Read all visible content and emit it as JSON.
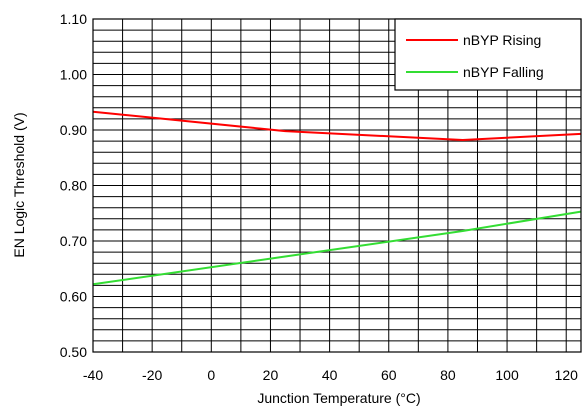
{
  "chart_data": {
    "type": "line",
    "title": "",
    "xlabel": "Junction Temperature (°C)",
    "ylabel": "EN Logic Threshold (V)",
    "xlim": [
      -40,
      125
    ],
    "ylim": [
      0.5,
      1.1
    ],
    "x_ticks": [
      -40,
      -20,
      0,
      20,
      40,
      60,
      80,
      100,
      120
    ],
    "x_tick_labels": [
      "-40",
      "-20",
      "0",
      "20",
      "40",
      "60",
      "80",
      "100",
      "120"
    ],
    "y_ticks": [
      0.5,
      0.6,
      0.7,
      0.8,
      0.9,
      1.0,
      1.1
    ],
    "y_tick_labels": [
      "0.50",
      "0.60",
      "0.70",
      "0.80",
      "0.90",
      "1.00",
      "1.10"
    ],
    "grid": true,
    "legend_position": "top-right",
    "series": [
      {
        "name": "nBYP Rising",
        "color": "#ff0000",
        "x": [
          -40,
          25,
          85,
          125
        ],
        "y": [
          0.933,
          0.898,
          0.882,
          0.893
        ]
      },
      {
        "name": "nBYP Falling",
        "color": "#33dd33",
        "x": [
          -40,
          25,
          85,
          125
        ],
        "y": [
          0.622,
          0.672,
          0.718,
          0.753
        ]
      }
    ]
  }
}
